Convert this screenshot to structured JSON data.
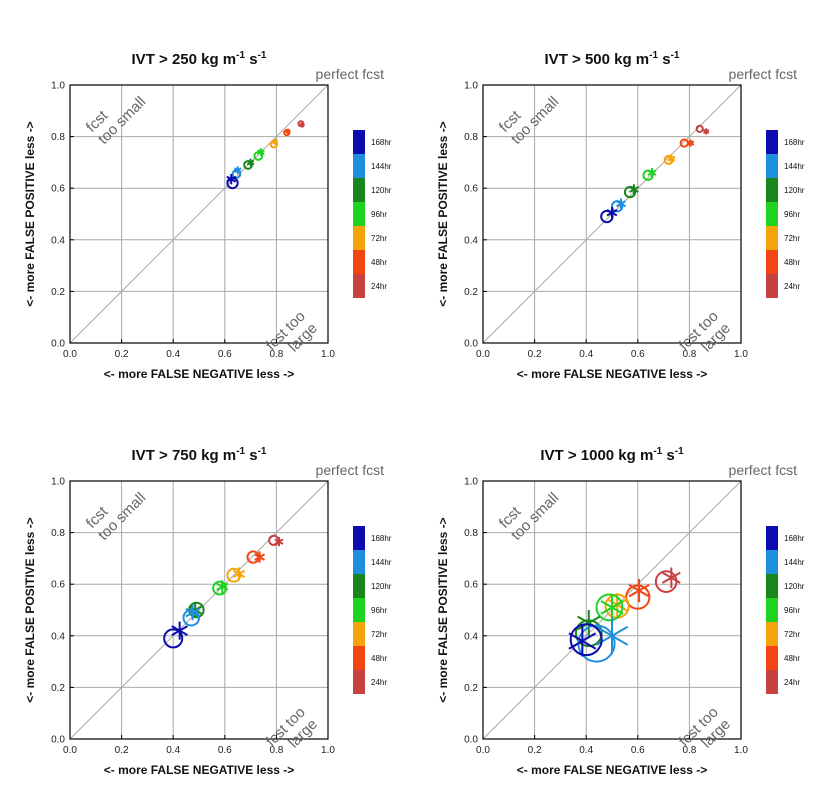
{
  "figure": {
    "perfect_label": "perfect fcst",
    "x_axis_label": "<- more   FALSE NEGATIVE   less ->",
    "y_axis_label": "<- more   FALSE POSITIVE   less ->",
    "top_left_note": [
      "fcst",
      "too small"
    ],
    "bottom_right_note": [
      "fcst too",
      "large"
    ],
    "ticks": [
      "0.0",
      "0.2",
      "0.4",
      "0.6",
      "0.8",
      "1.0"
    ],
    "legend": [
      {
        "label": "168hr",
        "color": "#0b0bb0"
      },
      {
        "label": "144hr",
        "color": "#1e8fdc"
      },
      {
        "label": "120hr",
        "color": "#18861c"
      },
      {
        "label": "96hr",
        "color": "#1ed41e"
      },
      {
        "label": "72hr",
        "color": "#f5a30a"
      },
      {
        "label": "48hr",
        "color": "#f24512"
      },
      {
        "label": "24hr",
        "color": "#c84141"
      }
    ]
  },
  "chart_data": [
    {
      "type": "scatter",
      "title_main": "IVT > 250 kg m",
      "title_exp1": "-1",
      "title_mid": " s",
      "title_exp2": "-1",
      "xlabel": "<- more   FALSE NEGATIVE   less ->",
      "ylabel": "<- more   FALSE POSITIVE   less ->",
      "xlim": [
        0,
        1
      ],
      "ylim": [
        0,
        1
      ],
      "grid": true,
      "diagonal": true,
      "series": [
        {
          "name": "168hr",
          "circle": [
            0.63,
            0.62,
            0.02
          ],
          "star": [
            0.625,
            0.635,
            0.02
          ]
        },
        {
          "name": "144hr",
          "circle": [
            0.645,
            0.655,
            0.015
          ],
          "star": [
            0.65,
            0.67,
            0.015
          ]
        },
        {
          "name": "120hr",
          "circle": [
            0.69,
            0.69,
            0.015
          ],
          "star": [
            0.7,
            0.7,
            0.015
          ]
        },
        {
          "name": "96hr",
          "circle": [
            0.73,
            0.725,
            0.015
          ],
          "star": [
            0.74,
            0.74,
            0.015
          ]
        },
        {
          "name": "72hr",
          "circle": [
            0.79,
            0.77,
            0.012
          ],
          "star": [
            0.795,
            0.78,
            0.012
          ]
        },
        {
          "name": "48hr",
          "circle": [
            0.84,
            0.815,
            0.01
          ],
          "star": [
            0.845,
            0.82,
            0.01
          ]
        },
        {
          "name": "24hr",
          "circle": [
            0.895,
            0.85,
            0.008
          ],
          "star": [
            0.9,
            0.845,
            0.008
          ]
        }
      ]
    },
    {
      "type": "scatter",
      "title_main": "IVT > 500 kg m",
      "title_exp1": "-1",
      "title_mid": " s",
      "title_exp2": "-1",
      "xlabel": "<- more   FALSE NEGATIVE   less ->",
      "ylabel": "<- more   FALSE POSITIVE   less ->",
      "xlim": [
        0,
        1
      ],
      "ylim": [
        0,
        1
      ],
      "grid": true,
      "diagonal": true,
      "series": [
        {
          "name": "168hr",
          "circle": [
            0.48,
            0.49,
            0.022
          ],
          "star": [
            0.5,
            0.505,
            0.022
          ]
        },
        {
          "name": "144hr",
          "circle": [
            0.52,
            0.53,
            0.02
          ],
          "star": [
            0.535,
            0.54,
            0.02
          ]
        },
        {
          "name": "120hr",
          "circle": [
            0.57,
            0.585,
            0.02
          ],
          "star": [
            0.585,
            0.595,
            0.02
          ]
        },
        {
          "name": "96hr",
          "circle": [
            0.64,
            0.65,
            0.018
          ],
          "star": [
            0.655,
            0.66,
            0.018
          ]
        },
        {
          "name": "72hr",
          "circle": [
            0.72,
            0.71,
            0.016
          ],
          "star": [
            0.73,
            0.715,
            0.016
          ]
        },
        {
          "name": "48hr",
          "circle": [
            0.78,
            0.775,
            0.014
          ],
          "star": [
            0.805,
            0.775,
            0.014
          ]
        },
        {
          "name": "24hr",
          "circle": [
            0.84,
            0.83,
            0.012
          ],
          "star": [
            0.865,
            0.82,
            0.012
          ]
        }
      ]
    },
    {
      "type": "scatter",
      "title_main": "IVT > 750 kg m",
      "title_exp1": "-1",
      "title_mid": " s",
      "title_exp2": "-1",
      "xlabel": "<- more   FALSE NEGATIVE   less ->",
      "ylabel": "<- more   FALSE POSITIVE   less ->",
      "xlim": [
        0,
        1
      ],
      "ylim": [
        0,
        1
      ],
      "grid": true,
      "diagonal": true,
      "series": [
        {
          "name": "168hr",
          "circle": [
            0.4,
            0.39,
            0.035
          ],
          "star": [
            0.425,
            0.42,
            0.035
          ]
        },
        {
          "name": "144hr",
          "circle": [
            0.47,
            0.47,
            0.03
          ],
          "star": [
            0.475,
            0.49,
            0.03
          ]
        },
        {
          "name": "120hr",
          "circle": [
            0.49,
            0.5,
            0.028
          ],
          "star": [
            0.485,
            0.5,
            0.028
          ]
        },
        {
          "name": "96hr",
          "circle": [
            0.58,
            0.585,
            0.025
          ],
          "star": [
            0.59,
            0.59,
            0.025
          ]
        },
        {
          "name": "72hr",
          "circle": [
            0.635,
            0.635,
            0.025
          ],
          "star": [
            0.655,
            0.64,
            0.025
          ]
        },
        {
          "name": "48hr",
          "circle": [
            0.71,
            0.705,
            0.022
          ],
          "star": [
            0.735,
            0.705,
            0.022
          ]
        },
        {
          "name": "24hr",
          "circle": [
            0.79,
            0.77,
            0.018
          ],
          "star": [
            0.81,
            0.765,
            0.018
          ]
        }
      ]
    },
    {
      "type": "scatter",
      "title_main": "IVT > 1000 kg m",
      "title_exp1": "-1",
      "title_mid": " s",
      "title_exp2": "-1",
      "xlabel": "<- more   FALSE NEGATIVE   less ->",
      "ylabel": "<- more   FALSE POSITIVE   less ->",
      "xlim": [
        0,
        1
      ],
      "ylim": [
        0,
        1
      ],
      "grid": true,
      "diagonal": true,
      "series": [
        {
          "name": "168hr",
          "circle": [
            0.4,
            0.385,
            0.06
          ],
          "star": [
            0.385,
            0.38,
            0.06
          ]
        },
        {
          "name": "144hr",
          "circle": [
            0.44,
            0.37,
            0.07
          ],
          "star": [
            0.5,
            0.4,
            0.07
          ]
        },
        {
          "name": "120hr",
          "circle": [
            0.41,
            0.41,
            0.05
          ],
          "star": [
            0.41,
            0.45,
            0.05
          ]
        },
        {
          "name": "96hr",
          "circle": [
            0.49,
            0.51,
            0.05
          ],
          "star": [
            0.5,
            0.51,
            0.05
          ]
        },
        {
          "name": "72hr",
          "circle": [
            0.52,
            0.515,
            0.045
          ],
          "star": [
            0.52,
            0.52,
            0.045
          ]
        },
        {
          "name": "48hr",
          "circle": [
            0.6,
            0.55,
            0.045
          ],
          "star": [
            0.605,
            0.575,
            0.045
          ]
        },
        {
          "name": "24hr",
          "circle": [
            0.71,
            0.61,
            0.04
          ],
          "star": [
            0.73,
            0.625,
            0.04
          ]
        }
      ]
    }
  ]
}
